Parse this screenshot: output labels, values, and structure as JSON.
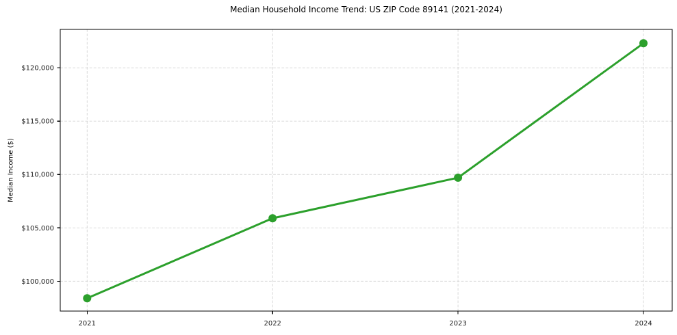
{
  "page": {
    "title": "Median Household Income Trend: US ZIP Code 89141 (2021-2024)"
  },
  "chart_data": {
    "type": "line",
    "title": "Median Household Income Trend: US ZIP Code 89141 (2021-2024)",
    "xlabel": "",
    "ylabel": "Median Income ($)",
    "categories": [
      "2021",
      "2022",
      "2023",
      "2024"
    ],
    "values": [
      98400,
      105900,
      109700,
      122300
    ],
    "y_ticks": [
      100000,
      105000,
      110000,
      115000,
      120000
    ],
    "y_tick_labels": [
      "$100,000",
      "$105,000",
      "$110,000",
      "$115,000",
      "$120,000"
    ],
    "ylim": [
      97200,
      123600
    ],
    "grid": true,
    "grid_style": "dashed",
    "legend": false,
    "line_color": "#2ca02c",
    "marker": "circle",
    "marker_color": "#2ca02c",
    "grid_color": "#d4d4d4",
    "axis_color": "#000000",
    "tick_text_color": "#1a1a1a",
    "background_color": "#ffffff"
  }
}
